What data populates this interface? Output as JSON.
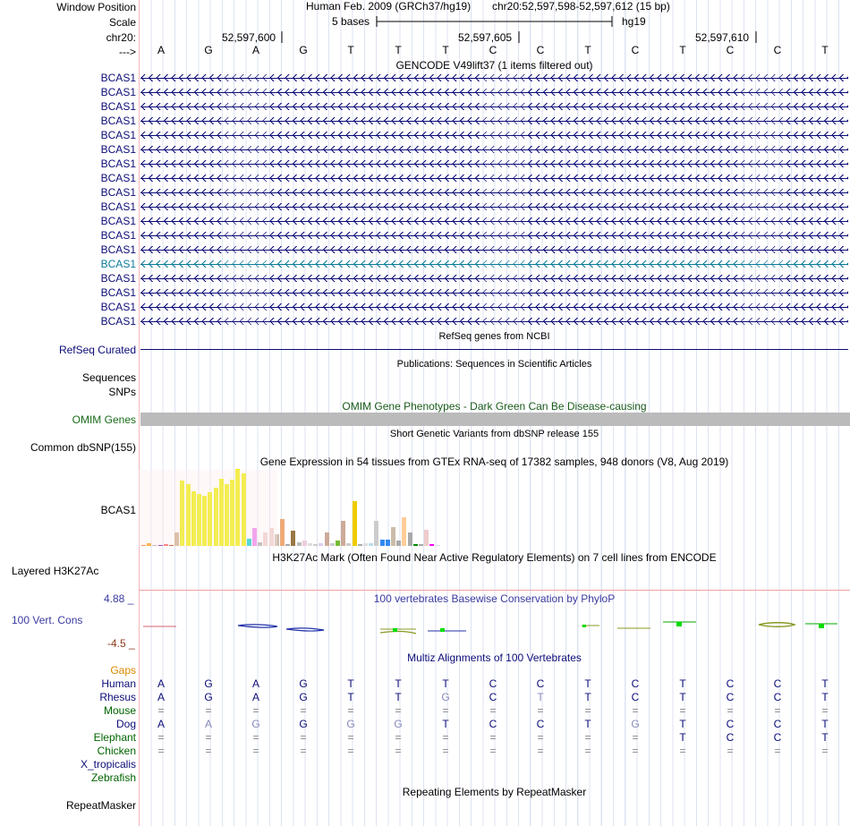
{
  "header": {
    "window_position_label": "Window Position",
    "scale_label": "Scale",
    "chrom_label": "chr20:",
    "strand_label": "--->",
    "assembly": "Human Feb. 2009 (GRCh37/hg19)",
    "position": "chr20:52,597,598-52,597,612 (15 bp)",
    "scale_text": "5 bases",
    "db": "hg19",
    "ticks": [
      "52,597,600",
      "52,597,605",
      "52,597,610"
    ],
    "bases": [
      "A",
      "G",
      "A",
      "G",
      "T",
      "T",
      "T",
      "C",
      "C",
      "T",
      "C",
      "T",
      "C",
      "C",
      "T"
    ]
  },
  "gencode": {
    "title": "GENCODE V49lift37 (1 items filtered out)",
    "rows": [
      "BCAS1",
      "BCAS1",
      "BCAS1",
      "BCAS1",
      "BCAS1",
      "BCAS1",
      "BCAS1",
      "BCAS1",
      "BCAS1",
      "BCAS1",
      "BCAS1",
      "BCAS1",
      "BCAS1",
      "BCAS1",
      "BCAS1",
      "BCAS1",
      "BCAS1",
      "BCAS1"
    ],
    "highlight_row": 13,
    "colors": {
      "normal": "#0c0c78",
      "highlight": "#0c7b9b"
    }
  },
  "refseq": {
    "title": "RefSeq genes from NCBI",
    "label": "RefSeq Curated"
  },
  "publications": {
    "title": "Publications: Sequences in Scientific Articles",
    "labels": [
      "Sequences",
      "SNPs"
    ]
  },
  "omim": {
    "title": "OMIM Gene Phenotypes - Dark Green Can Be Disease-causing",
    "label": "OMIM Genes"
  },
  "dbsnp": {
    "title": "Short Genetic Variants from dbSNP release 155",
    "label": "Common dbSNP(155)"
  },
  "gtex": {
    "title": "Gene Expression in 54 tissues from GTEx RNA-seq of 17382 samples, 948 donors (V8, Aug 2019)",
    "label": "BCAS1",
    "bars": [
      {
        "v": 0.02,
        "c": "#ff6600"
      },
      {
        "v": 0.05,
        "c": "#ff9900"
      },
      {
        "v": 0.0,
        "c": "#aaaaaa"
      },
      {
        "v": 0.02,
        "c": "#660099"
      },
      {
        "v": 0.03,
        "c": "#ff5555"
      },
      {
        "v": 0.02,
        "c": "#aa3300"
      },
      {
        "v": 0.23,
        "c": "#ccaa88"
      },
      {
        "v": 1.1,
        "c": "#eeee00"
      },
      {
        "v": 1.05,
        "c": "#eeee00"
      },
      {
        "v": 0.93,
        "c": "#eeee00"
      },
      {
        "v": 0.88,
        "c": "#eeee00"
      },
      {
        "v": 0.85,
        "c": "#eeee00"
      },
      {
        "v": 0.91,
        "c": "#eeee00"
      },
      {
        "v": 0.98,
        "c": "#eeee00"
      },
      {
        "v": 1.14,
        "c": "#eeee00"
      },
      {
        "v": 1.05,
        "c": "#eeee00"
      },
      {
        "v": 1.12,
        "c": "#eeee00"
      },
      {
        "v": 1.3,
        "c": "#eeee00"
      },
      {
        "v": 1.22,
        "c": "#eeee00"
      },
      {
        "v": 0.12,
        "c": "#00cccc"
      },
      {
        "v": 0.31,
        "c": "#ee82ee"
      },
      {
        "v": 0.06,
        "c": "#aaaaaa"
      },
      {
        "v": 0.23,
        "c": "#eecccc"
      },
      {
        "v": 0.3,
        "c": "#eecccc"
      },
      {
        "v": 0.19,
        "c": "#ccbbaa"
      },
      {
        "v": 0.46,
        "c": "#eeaa77"
      },
      {
        "v": 0.03,
        "c": "#aaaaaa"
      },
      {
        "v": 0.25,
        "c": "#997744"
      },
      {
        "v": 0.06,
        "c": "#bbbbbb"
      },
      {
        "v": 0.09,
        "c": "#eeccdd"
      },
      {
        "v": 0.05,
        "c": "#dddddd"
      },
      {
        "v": 0.03,
        "c": "#cccccc"
      },
      {
        "v": 0.05,
        "c": "#ddccee"
      },
      {
        "v": 0.22,
        "c": "#ccaa99"
      },
      {
        "v": 0.04,
        "c": "#cccccc"
      },
      {
        "v": 0.09,
        "c": "#77bb33"
      },
      {
        "v": 0.43,
        "c": "#ccaa99"
      },
      {
        "v": 0.04,
        "c": "#cccccc"
      },
      {
        "v": 0.75,
        "c": "#eecc00"
      },
      {
        "v": 0.03,
        "c": "#aaaaaa"
      },
      {
        "v": 0.05,
        "c": "#dddddd"
      },
      {
        "v": 0.05,
        "c": "#bbddee"
      },
      {
        "v": 0.43,
        "c": "#cccccc"
      },
      {
        "v": 0.1,
        "c": "#3388ee"
      },
      {
        "v": 0.1,
        "c": "#3388ee"
      },
      {
        "v": 0.32,
        "c": "#ccbbaa"
      },
      {
        "v": 0.09,
        "c": "#aaaaaa"
      },
      {
        "v": 0.48,
        "c": "#ffcc99"
      },
      {
        "v": 0.22,
        "c": "#aaaaaa"
      },
      {
        "v": 0.03,
        "c": "#008800"
      },
      {
        "v": 0.03,
        "c": "#aaaaaa"
      },
      {
        "v": 0.28,
        "c": "#eecccc"
      },
      {
        "v": 0.03,
        "c": "#ff00ff"
      },
      {
        "v": 0.0,
        "c": "#dddddd"
      }
    ]
  },
  "h3k27ac": {
    "title": "H3K27Ac Mark (Often Found Near Active Regulatory Elements) on 7 cell lines from ENCODE",
    "label": "Layered H3K27Ac"
  },
  "conservation": {
    "title": "100 vertebrates Basewise Conservation by PhyloP",
    "label": "100 Vert. Cons",
    "max": "4.88 _",
    "min": "-4.5 _"
  },
  "multiz": {
    "title": "Multiz Alignments of 100 Vertebrates",
    "gaps_label": "Gaps",
    "species": [
      {
        "name": "Human",
        "color": "#0c0c78",
        "row": [
          "A",
          "G",
          "A",
          "G",
          "T",
          "T",
          "T",
          "C",
          "C",
          "T",
          "C",
          "T",
          "C",
          "C",
          "T"
        ]
      },
      {
        "name": "Rhesus",
        "color": "#0c0c78",
        "row": [
          "A",
          "G",
          "A",
          "G",
          "T",
          "T",
          "G",
          "C",
          "T",
          "T",
          "C",
          "T",
          "C",
          "C",
          "T"
        ]
      },
      {
        "name": "Mouse",
        "color": "#006400",
        "row": [
          "=",
          "=",
          "=",
          "=",
          "=",
          "=",
          "=",
          "=",
          "=",
          "=",
          "=",
          "=",
          "=",
          "=",
          "="
        ]
      },
      {
        "name": "Dog",
        "color": "#0c0c78",
        "row": [
          "A",
          "A",
          "G",
          "G",
          "G",
          "G",
          "T",
          "C",
          "C",
          "T",
          "G",
          "T",
          "C",
          "C",
          "T"
        ]
      },
      {
        "name": "Elephant",
        "color": "#006400",
        "row": [
          "=",
          "=",
          "=",
          "=",
          "=",
          "=",
          "=",
          "=",
          "=",
          "=",
          "=",
          "T",
          "C",
          "C",
          "T"
        ]
      },
      {
        "name": "Chicken",
        "color": "#006400",
        "row": [
          "=",
          "=",
          "=",
          "=",
          "=",
          "=",
          "=",
          "=",
          "=",
          "=",
          "=",
          "=",
          "=",
          "=",
          "="
        ]
      },
      {
        "name": "X_tropicalis",
        "color": "#0c0c78",
        "row": [
          "",
          "",
          "",
          "",
          "",
          "",
          "",
          "",
          "",
          "",
          "",
          "",
          "",
          "",
          ""
        ]
      },
      {
        "name": "Zebrafish",
        "color": "#006400",
        "row": [
          "",
          "",
          "",
          "",
          "",
          "",
          "",
          "",
          "",
          "",
          "",
          "",
          "",
          "",
          ""
        ]
      }
    ]
  },
  "repeatmasker": {
    "title": "Repeating Elements by RepeatMasker",
    "label": "RepeatMasker"
  }
}
